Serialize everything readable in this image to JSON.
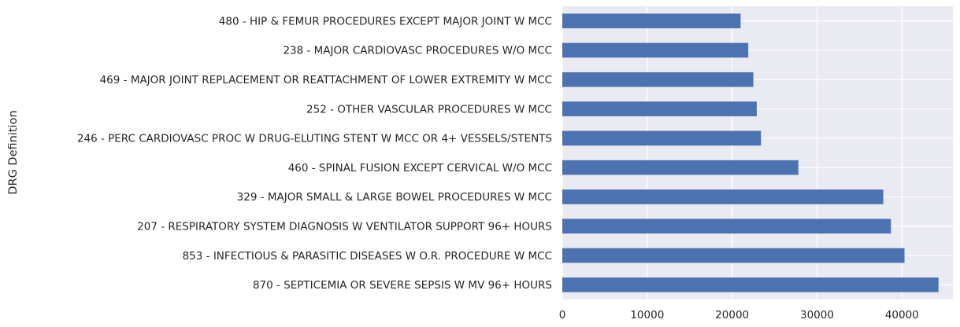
{
  "chart_data": {
    "type": "bar",
    "orientation": "horizontal",
    "title": "",
    "xlabel": "",
    "ylabel": "DRG Definition",
    "categories": [
      "480 - HIP & FEMUR PROCEDURES EXCEPT MAJOR JOINT W MCC",
      "238 - MAJOR CARDIOVASC PROCEDURES W/O MCC",
      "469 - MAJOR JOINT REPLACEMENT OR REATTACHMENT OF LOWER EXTREMITY W MCC",
      "252 - OTHER VASCULAR PROCEDURES W MCC",
      "246 - PERC CARDIOVASC PROC W DRUG-ELUTING STENT W MCC OR 4+ VESSELS/STENTS",
      "460 - SPINAL FUSION EXCEPT CERVICAL W/O MCC",
      "329 - MAJOR SMALL & LARGE BOWEL PROCEDURES W MCC",
      "207 - RESPIRATORY SYSTEM DIAGNOSIS W VENTILATOR SUPPORT 96+ HOURS",
      "853 - INFECTIOUS & PARASITIC DISEASES W O.R. PROCEDURE W MCC",
      "870 - SEPTICEMIA OR SEVERE SEPSIS W MV 96+ HOURS"
    ],
    "values": [
      21000,
      21900,
      22500,
      22900,
      23400,
      27800,
      37800,
      38700,
      40300,
      44300
    ],
    "xlim": [
      0,
      46000
    ],
    "xticks": [
      0,
      10000,
      20000,
      30000,
      40000
    ],
    "xtick_labels": [
      "0",
      "10000",
      "20000",
      "30000",
      "40000"
    ],
    "grid": true,
    "bar_color": "#4c72b0",
    "background_color": "#eaeaf2",
    "grid_color": "#ffffff"
  }
}
